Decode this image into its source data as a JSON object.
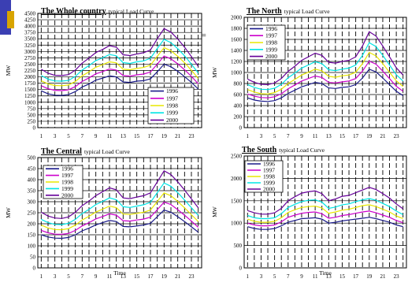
{
  "years": [
    "1996",
    "1997",
    "1998",
    "1999",
    "2000"
  ],
  "series_colors": [
    "#1a1a8a",
    "#cc00cc",
    "#e8e800",
    "#00e5e5",
    "#660099"
  ],
  "ylabel": "MW",
  "stray_mark": "=",
  "chart_data": [
    {
      "type": "line",
      "title": "The Whole country",
      "subtitle": "typical Load Curve",
      "xlabel": "",
      "ylabel": "MW",
      "x": [
        1,
        2,
        3,
        4,
        5,
        6,
        7,
        8,
        9,
        10,
        11,
        12,
        13,
        14,
        15,
        16,
        17,
        18,
        19,
        20,
        21,
        22,
        23,
        24
      ],
      "xticks": [
        1,
        3,
        5,
        7,
        9,
        11,
        13,
        15,
        17,
        19,
        21,
        23
      ],
      "xtick_labels": [
        "1",
        "3",
        "5",
        "7",
        "9",
        "11",
        "13",
        "15",
        "17",
        "19",
        "21",
        "23"
      ],
      "ylim": [
        0,
        4500
      ],
      "yticks": [
        0,
        250,
        500,
        750,
        1000,
        1250,
        1500,
        1750,
        2000,
        2250,
        2500,
        2750,
        3000,
        3250,
        3500,
        3750,
        4000,
        4250,
        4500
      ],
      "ytick_labels": [
        "0",
        "250",
        "500",
        "750",
        "1000",
        "1250",
        "1500",
        "1750",
        "2000",
        "2250",
        "2500",
        "2750",
        "3000",
        "3250",
        "3500",
        "3750",
        "4000",
        "4250",
        "4500"
      ],
      "grid": true,
      "legend_position": "bottom-right",
      "series": [
        {
          "name": "1996",
          "values": [
            1450,
            1330,
            1280,
            1270,
            1300,
            1420,
            1600,
            1720,
            1870,
            1950,
            2040,
            2000,
            1800,
            1780,
            1830,
            1850,
            1920,
            2200,
            2500,
            2400,
            2220,
            2010,
            1780,
            1520
          ]
        },
        {
          "name": "1997",
          "values": [
            1650,
            1530,
            1470,
            1460,
            1490,
            1620,
            1820,
            1960,
            2120,
            2210,
            2310,
            2270,
            2050,
            2030,
            2080,
            2110,
            2190,
            2500,
            2820,
            2710,
            2510,
            2280,
            2020,
            1730
          ]
        },
        {
          "name": "1998",
          "values": [
            1850,
            1720,
            1660,
            1650,
            1680,
            1820,
            2040,
            2200,
            2380,
            2480,
            2590,
            2550,
            2300,
            2280,
            2330,
            2370,
            2460,
            2810,
            3150,
            3030,
            2810,
            2560,
            2260,
            1940
          ]
        },
        {
          "name": "1999",
          "values": [
            2050,
            1910,
            1840,
            1830,
            1860,
            2020,
            2270,
            2450,
            2640,
            2750,
            2880,
            2830,
            2560,
            2530,
            2590,
            2630,
            2730,
            3120,
            3480,
            3350,
            3110,
            2830,
            2500,
            2150
          ]
        },
        {
          "name": "2000",
          "values": [
            2300,
            2140,
            2060,
            2050,
            2090,
            2270,
            2540,
            2740,
            2960,
            3080,
            3230,
            3170,
            2870,
            2840,
            2900,
            2950,
            3060,
            3500,
            3900,
            3760,
            3490,
            3170,
            2800,
            2410
          ]
        }
      ]
    },
    {
      "type": "line",
      "title": "The North",
      "subtitle": "typical Load Curve",
      "xlabel": "",
      "ylabel": "MW",
      "x": [
        1,
        2,
        3,
        4,
        5,
        6,
        7,
        8,
        9,
        10,
        11,
        12,
        13,
        14,
        15,
        16,
        17,
        18,
        19,
        20,
        21,
        22,
        23,
        24
      ],
      "xticks": [
        1,
        3,
        5,
        7,
        9,
        11,
        13,
        15,
        17,
        19,
        21,
        23
      ],
      "xtick_labels": [
        "1",
        "3",
        "5",
        "7",
        "9",
        "11",
        "13",
        "15",
        "17",
        "19",
        "21",
        "23"
      ],
      "ylim": [
        0,
        2000
      ],
      "yticks": [
        0,
        200,
        400,
        600,
        800,
        1000,
        1200,
        1400,
        1600,
        1800,
        2000
      ],
      "ytick_labels": [
        "0",
        "200",
        "400",
        "600",
        "800",
        "1000",
        "1200",
        "1400",
        "1600",
        "1800",
        "2000"
      ],
      "grid": true,
      "legend_position": "top-left",
      "series": [
        {
          "name": "1996",
          "values": [
            540,
            500,
            480,
            475,
            490,
            540,
            620,
            680,
            740,
            780,
            820,
            800,
            720,
            710,
            730,
            740,
            780,
            900,
            1060,
            1010,
            900,
            780,
            660,
            580
          ]
        },
        {
          "name": "1997",
          "values": [
            610,
            570,
            545,
            540,
            560,
            615,
            705,
            775,
            845,
            890,
            935,
            910,
            820,
            810,
            830,
            845,
            890,
            1025,
            1205,
            1150,
            1025,
            890,
            750,
            660
          ]
        },
        {
          "name": "1998",
          "values": [
            690,
            645,
            615,
            610,
            635,
            695,
            800,
            875,
            955,
            1005,
            1060,
            1030,
            930,
            915,
            940,
            955,
            1005,
            1160,
            1365,
            1300,
            1160,
            1005,
            850,
            745
          ]
        },
        {
          "name": "1999",
          "values": [
            780,
            730,
            695,
            690,
            715,
            785,
            905,
            990,
            1080,
            1135,
            1195,
            1160,
            1050,
            1035,
            1060,
            1080,
            1135,
            1310,
            1540,
            1470,
            1310,
            1135,
            960,
            845
          ]
        },
        {
          "name": "2000",
          "values": [
            880,
            820,
            785,
            780,
            810,
            890,
            1020,
            1115,
            1220,
            1285,
            1350,
            1310,
            1185,
            1170,
            1200,
            1220,
            1285,
            1480,
            1740,
            1660,
            1480,
            1285,
            1085,
            955
          ]
        }
      ]
    },
    {
      "type": "line",
      "title": "The Central",
      "subtitle": "typical Load Curve",
      "xlabel": "Time",
      "ylabel": "MW",
      "x": [
        1,
        2,
        3,
        4,
        5,
        6,
        7,
        8,
        9,
        10,
        11,
        12,
        13,
        14,
        15,
        16,
        17,
        18,
        19,
        20,
        21,
        22,
        23,
        24
      ],
      "xticks": [
        1,
        3,
        5,
        7,
        9,
        11,
        13,
        15,
        17,
        19,
        21,
        23
      ],
      "xtick_labels": [
        "1",
        "3",
        "5",
        "7",
        "9",
        "11",
        "13",
        "15",
        "17",
        "19",
        "21",
        "23"
      ],
      "ylim": [
        0,
        500
      ],
      "yticks": [
        0,
        50,
        100,
        150,
        200,
        250,
        300,
        350,
        400,
        450,
        500
      ],
      "ytick_labels": [
        "0",
        "50",
        "100",
        "150",
        "200",
        "250",
        "300",
        "350",
        "400",
        "450",
        "500"
      ],
      "grid": true,
      "legend_position": "top-left",
      "series": [
        {
          "name": "1996",
          "values": [
            150,
            140,
            135,
            134,
            138,
            150,
            168,
            180,
            195,
            205,
            215,
            210,
            188,
            186,
            190,
            194,
            202,
            232,
            262,
            252,
            232,
            210,
            186,
            162
          ]
        },
        {
          "name": "1997",
          "values": [
            170,
            159,
            153,
            152,
            156,
            170,
            190,
            205,
            222,
            233,
            245,
            239,
            214,
            212,
            217,
            221,
            230,
            264,
            298,
            287,
            264,
            239,
            212,
            184
          ]
        },
        {
          "name": "1998",
          "values": [
            194,
            181,
            174,
            173,
            178,
            194,
            217,
            234,
            253,
            266,
            280,
            273,
            244,
            242,
            247,
            252,
            262,
            301,
            340,
            327,
            301,
            272,
            241,
            210
          ]
        },
        {
          "name": "1999",
          "values": [
            220,
            205,
            197,
            196,
            202,
            220,
            246,
            265,
            287,
            301,
            317,
            309,
            277,
            274,
            280,
            286,
            297,
            341,
            385,
            370,
            341,
            308,
            273,
            238
          ]
        },
        {
          "name": "2000",
          "values": [
            252,
            235,
            226,
            224,
            231,
            252,
            282,
            303,
            328,
            345,
            363,
            354,
            317,
            314,
            321,
            327,
            340,
            390,
            440,
            423,
            390,
            353,
            313,
            272
          ]
        }
      ]
    },
    {
      "type": "line",
      "title": "The South",
      "subtitle": "typical Load Curve",
      "xlabel": "Time",
      "ylabel": "MW",
      "x": [
        1,
        2,
        3,
        4,
        5,
        6,
        7,
        8,
        9,
        10,
        11,
        12,
        13,
        14,
        15,
        16,
        17,
        18,
        19,
        20,
        21,
        22,
        23,
        24
      ],
      "xticks": [
        1,
        3,
        5,
        7,
        9,
        11,
        13,
        15,
        17,
        19,
        21,
        23
      ],
      "xtick_labels": [
        "1",
        "3",
        "5",
        "7",
        "9",
        "11",
        "13",
        "15",
        "17",
        "19",
        "21",
        "23"
      ],
      "ylim": [
        0,
        2500
      ],
      "yticks": [
        0,
        500,
        1000,
        1500,
        2000,
        2500
      ],
      "ytick_labels": [
        "0",
        "500",
        "1000",
        "1500",
        "2000",
        "2500"
      ],
      "grid": true,
      "legend_position": "top-left",
      "series": [
        {
          "name": "1996",
          "values": [
            920,
            880,
            860,
            860,
            880,
            940,
            1020,
            1060,
            1100,
            1110,
            1120,
            1090,
            1000,
            1020,
            1050,
            1070,
            1090,
            1110,
            1130,
            1100,
            1060,
            1020,
            960,
            920
          ]
        },
        {
          "name": "1997",
          "values": [
            1000,
            960,
            940,
            940,
            960,
            1030,
            1130,
            1180,
            1220,
            1240,
            1250,
            1210,
            1110,
            1130,
            1170,
            1190,
            1220,
            1250,
            1270,
            1230,
            1180,
            1130,
            1060,
            1010
          ]
        },
        {
          "name": "1998",
          "values": [
            1090,
            1040,
            1020,
            1020,
            1040,
            1120,
            1240,
            1300,
            1350,
            1370,
            1380,
            1340,
            1220,
            1250,
            1290,
            1310,
            1350,
            1390,
            1410,
            1370,
            1310,
            1250,
            1160,
            1100
          ]
        },
        {
          "name": "1999",
          "values": [
            1170,
            1120,
            1100,
            1100,
            1120,
            1210,
            1350,
            1420,
            1480,
            1510,
            1520,
            1470,
            1330,
            1360,
            1410,
            1430,
            1480,
            1520,
            1550,
            1510,
            1440,
            1370,
            1270,
            1190
          ]
        },
        {
          "name": "2000",
          "values": [
            1280,
            1230,
            1200,
            1200,
            1230,
            1330,
            1500,
            1590,
            1670,
            1700,
            1720,
            1660,
            1500,
            1540,
            1600,
            1620,
            1680,
            1740,
            1800,
            1750,
            1660,
            1560,
            1430,
            1320
          ]
        }
      ]
    }
  ]
}
